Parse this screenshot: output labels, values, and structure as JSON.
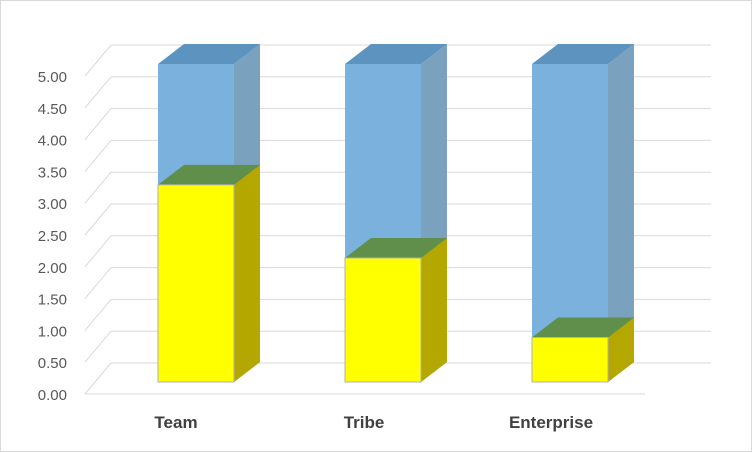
{
  "chart_data": {
    "type": "bar",
    "categories": [
      "Team",
      "Tribe",
      "Enterprise"
    ],
    "series": [
      {
        "values": [
          3.1,
          1.95,
          0.7
        ]
      },
      {
        "values": [
          5.0,
          5.0,
          5.0
        ]
      }
    ],
    "y_ticks": [
      "0.00",
      "0.50",
      "1.00",
      "1.50",
      "2.00",
      "2.50",
      "3.00",
      "3.50",
      "4.00",
      "4.50",
      "5.00"
    ],
    "ylim": [
      0,
      5
    ],
    "grid": true,
    "legend": "none",
    "colors": {
      "front_series": "#ffff00",
      "front_series_side": "#b3a700",
      "front_series_top": "#5f8f4a",
      "back_series": "#7ab1dd",
      "back_series_side": "#7aa1be",
      "back_series_top": "#5d93bf",
      "gridline": "#d9d9d9"
    }
  }
}
